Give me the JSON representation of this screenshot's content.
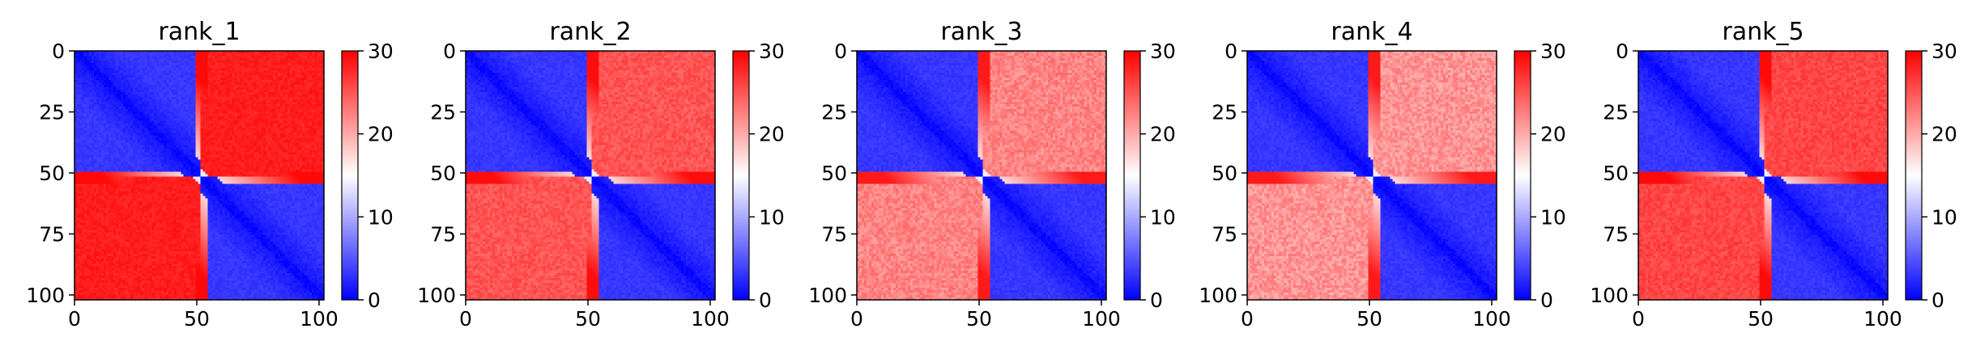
{
  "chart_data": [
    {
      "type": "heatmap",
      "title": "rank_1",
      "x_ticks": [
        "0",
        "50",
        "100"
      ],
      "y_ticks": [
        "0",
        "25",
        "50",
        "75",
        "100"
      ],
      "xlim": [
        0,
        102
      ],
      "ylim": [
        102,
        0
      ],
      "colorbar": {
        "ticks": [
          "0",
          "10",
          "20",
          "30"
        ],
        "range": [
          0,
          30
        ],
        "colormap": "bwr"
      },
      "grid_size": 103,
      "break_row": 52,
      "off_block_strength": 0.95,
      "band_strength": 0.97
    },
    {
      "type": "heatmap",
      "title": "rank_2",
      "x_ticks": [
        "0",
        "50",
        "100"
      ],
      "y_ticks": [
        "0",
        "25",
        "50",
        "75",
        "100"
      ],
      "xlim": [
        0,
        102
      ],
      "ylim": [
        102,
        0
      ],
      "colorbar": {
        "ticks": [
          "0",
          "10",
          "20",
          "30"
        ],
        "range": [
          0,
          30
        ],
        "colormap": "bwr"
      },
      "grid_size": 103,
      "break_row": 52,
      "off_block_strength": 0.72,
      "band_strength": 0.95
    },
    {
      "type": "heatmap",
      "title": "rank_3",
      "x_ticks": [
        "0",
        "50",
        "100"
      ],
      "y_ticks": [
        "0",
        "25",
        "50",
        "75",
        "100"
      ],
      "xlim": [
        0,
        102
      ],
      "ylim": [
        102,
        0
      ],
      "colorbar": {
        "ticks": [
          "0",
          "10",
          "20",
          "30"
        ],
        "range": [
          0,
          30
        ],
        "colormap": "bwr"
      },
      "grid_size": 103,
      "break_row": 52,
      "off_block_strength": 0.52,
      "band_strength": 0.9
    },
    {
      "type": "heatmap",
      "title": "rank_4",
      "x_ticks": [
        "0",
        "50",
        "100"
      ],
      "y_ticks": [
        "0",
        "25",
        "50",
        "75",
        "100"
      ],
      "xlim": [
        0,
        102
      ],
      "ylim": [
        102,
        0
      ],
      "colorbar": {
        "ticks": [
          "0",
          "10",
          "20",
          "30"
        ],
        "range": [
          0,
          30
        ],
        "colormap": "bwr"
      },
      "grid_size": 103,
      "break_row": 52,
      "off_block_strength": 0.45,
      "band_strength": 0.9
    },
    {
      "type": "heatmap",
      "title": "rank_5",
      "x_ticks": [
        "0",
        "50",
        "100"
      ],
      "y_ticks": [
        "0",
        "25",
        "50",
        "75",
        "100"
      ],
      "xlim": [
        0,
        102
      ],
      "ylim": [
        102,
        0
      ],
      "colorbar": {
        "ticks": [
          "0",
          "10",
          "20",
          "30"
        ],
        "range": [
          0,
          30
        ],
        "colormap": "bwr"
      },
      "grid_size": 103,
      "break_row": 52,
      "off_block_strength": 0.78,
      "band_strength": 0.96
    }
  ],
  "colors": {
    "low": "#0000ff",
    "mid": "#ffffff",
    "high": "#ff0000"
  }
}
